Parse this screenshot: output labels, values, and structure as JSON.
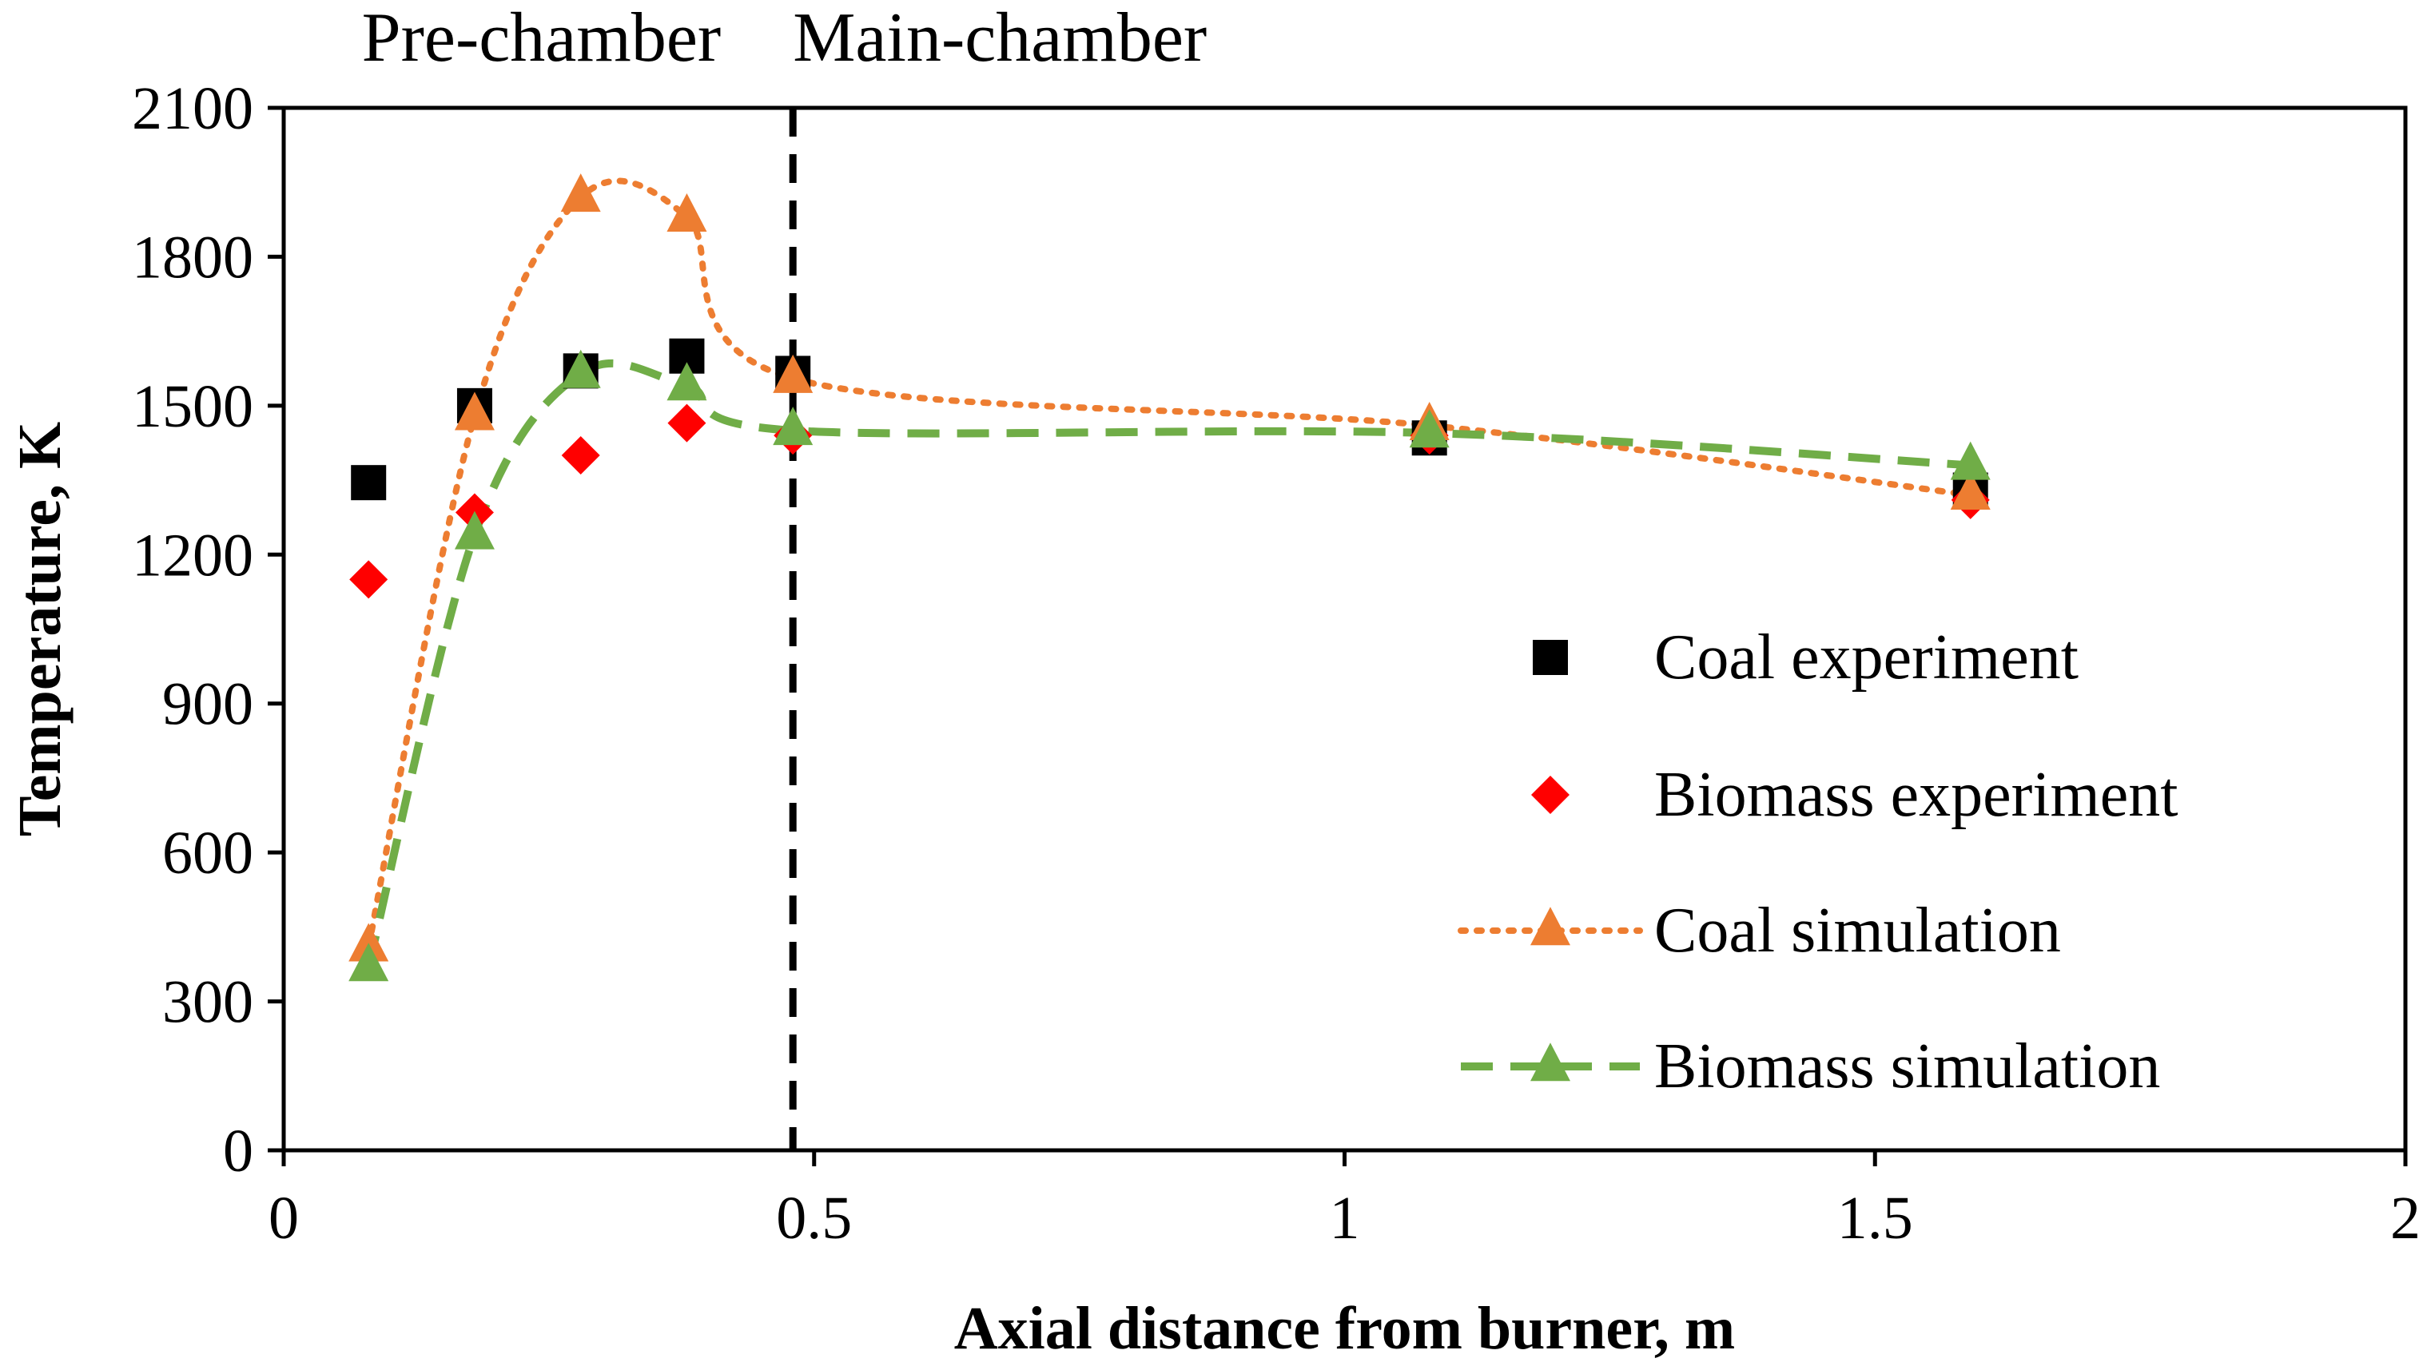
{
  "chart_data": {
    "type": "scatter",
    "title": "",
    "xlabel": "Axial distance from burner, m",
    "ylabel": "Temperature, K",
    "xlim": [
      0,
      2
    ],
    "ylim": [
      0,
      2100
    ],
    "xticks": [
      0,
      0.5,
      1,
      1.5,
      2
    ],
    "yticks": [
      0,
      300,
      600,
      900,
      1200,
      1500,
      1800,
      2100
    ],
    "xtick_labels": [
      "0",
      "0.5",
      "1",
      "1.5",
      "2"
    ],
    "ytick_labels": [
      "0",
      "300",
      "600",
      "900",
      "1200",
      "1500",
      "1800",
      "2100"
    ],
    "grid": false,
    "legend_position": "right",
    "annotations": {
      "divider_x": 0.48,
      "left_region": "Pre-chamber",
      "right_region": "Main-chamber"
    },
    "series": [
      {
        "name": "Coal experiment",
        "marker": "square",
        "line": "none",
        "color": "#000000",
        "x": [
          0.08,
          0.18,
          0.28,
          0.38,
          0.48,
          1.08,
          1.59
        ],
        "y": [
          1345,
          1500,
          1570,
          1600,
          1565,
          1435,
          1330
        ]
      },
      {
        "name": "Biomass experiment",
        "marker": "diamond",
        "line": "none",
        "color": "#ff0000",
        "x": [
          0.08,
          0.18,
          0.28,
          0.38,
          0.48,
          1.08,
          1.59
        ],
        "y": [
          1150,
          1285,
          1400,
          1465,
          1440,
          1440,
          1310
        ]
      },
      {
        "name": "Coal simulation",
        "marker": "triangle",
        "line": "dotted",
        "color": "#ed7d31",
        "x": [
          0.08,
          0.18,
          0.28,
          0.38,
          0.48,
          1.08,
          1.59
        ],
        "y": [
          410,
          1480,
          1920,
          1880,
          1555,
          1460,
          1320
        ]
      },
      {
        "name": "Biomass simulation",
        "marker": "triangle",
        "line": "dashed",
        "color": "#70ad47",
        "x": [
          0.08,
          0.18,
          0.28,
          0.38,
          0.48,
          1.08,
          1.59
        ],
        "y": [
          370,
          1240,
          1565,
          1540,
          1450,
          1445,
          1380
        ]
      }
    ]
  }
}
